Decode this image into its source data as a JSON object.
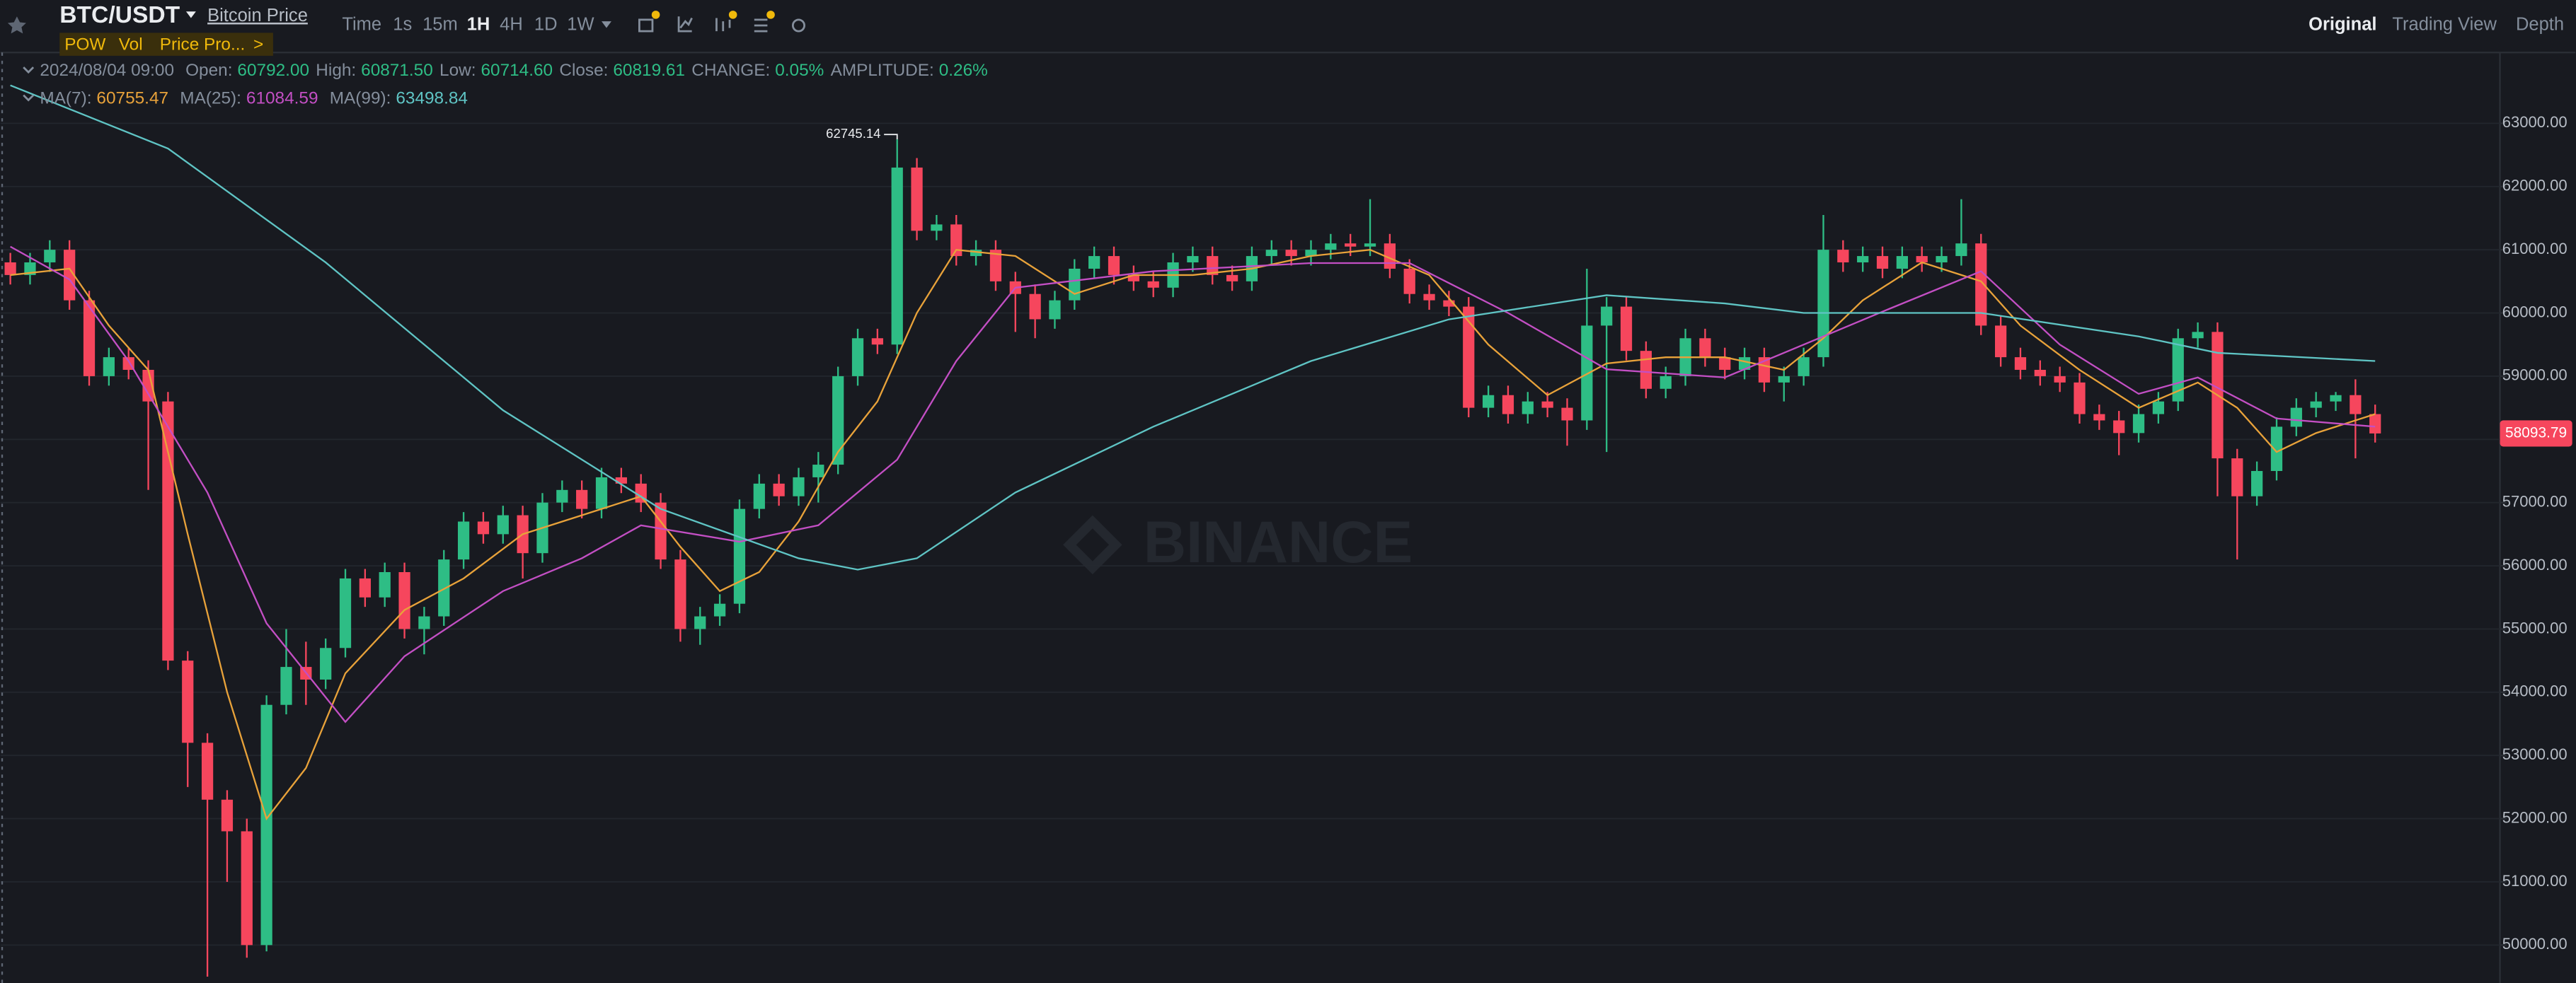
{
  "header": {
    "symbol": "BTC/USDT",
    "subtitle": "Bitcoin Price",
    "indicators": [
      "POW",
      "Vol",
      "Price Pro...",
      ">"
    ],
    "intervals": [
      "Time",
      "1s",
      "15m",
      "1H",
      "4H",
      "1D",
      "1W"
    ],
    "views": [
      "Original",
      "Trading View",
      "Depth"
    ]
  },
  "chart_data": {
    "type": "candlestick",
    "watermark": "BINANCE",
    "info": {
      "date": "2024/08/04 09:00",
      "fields": [
        {
          "label": "Open:",
          "text": "60792.00"
        },
        {
          "label": "High:",
          "text": "60871.50"
        },
        {
          "label": "Low:",
          "text": "60714.60"
        },
        {
          "label": "Close:",
          "text": "60819.61"
        },
        {
          "label": "CHANGE:",
          "text": "0.05%"
        },
        {
          "label": "AMPLITUDE:",
          "text": "0.26%"
        }
      ]
    },
    "up_color": "#2ebd85",
    "down_color": "#f6465d",
    "open": [
      60800,
      60600,
      60800,
      61000,
      60200,
      59000,
      59300,
      59100,
      58600,
      54500,
      53200,
      52300,
      51800,
      50000,
      53800,
      54400,
      54200,
      54700,
      55800,
      55500,
      55900,
      55000,
      55200,
      56100,
      56700,
      56500,
      56800,
      56200,
      57000,
      57200,
      56900,
      57400,
      57300,
      57000,
      56100,
      55000,
      55200,
      55400,
      56900,
      57300,
      57100,
      57400,
      57600,
      59000,
      59600,
      59500,
      62300,
      61300,
      61400,
      60900,
      61000,
      60500,
      60300,
      59900,
      60200,
      60700,
      60900,
      60600,
      60500,
      60400,
      60800,
      60900,
      60600,
      60500,
      60900,
      61000,
      60900,
      61000,
      61100,
      61050,
      61100,
      60700,
      60300,
      60200,
      60100,
      58500,
      58700,
      58400,
      58600,
      58500,
      58300,
      59800,
      60100,
      59400,
      58800,
      59000,
      59600,
      59300,
      59100,
      59300,
      58900,
      59000,
      59300,
      61000,
      60800,
      60900,
      60700,
      60900,
      60800,
      60900,
      61100,
      59800,
      59300,
      59100,
      59000,
      58900,
      58400,
      58300,
      58100,
      58400,
      58600,
      59600,
      59700,
      57700,
      57100,
      57500,
      58200,
      58500,
      58600,
      58700,
      58400
    ],
    "high": [
      60950,
      60950,
      61150,
      61150,
      60350,
      59450,
      59450,
      59250,
      58750,
      54650,
      53350,
      52450,
      52000,
      53950,
      55000,
      54800,
      54850,
      55950,
      55950,
      56050,
      56050,
      55350,
      56250,
      56850,
      56850,
      56950,
      56950,
      57150,
      57350,
      57350,
      57550,
      57550,
      57450,
      57150,
      56250,
      55350,
      55550,
      57050,
      57450,
      57450,
      57550,
      57800,
      59150,
      59750,
      59750,
      62745.14,
      62450,
      61550,
      61550,
      61150,
      61150,
      60650,
      60450,
      60350,
      60850,
      61050,
      61050,
      60750,
      60650,
      60950,
      61050,
      61050,
      60750,
      61050,
      61150,
      61150,
      61150,
      61250,
      61250,
      61800,
      61250,
      60850,
      60450,
      60350,
      60250,
      58850,
      58850,
      58750,
      58750,
      58650,
      60700,
      60250,
      60250,
      59550,
      59150,
      59750,
      59750,
      59450,
      59450,
      59450,
      59150,
      59450,
      61550,
      61150,
      61050,
      61050,
      61050,
      61050,
      61050,
      61800,
      61250,
      59950,
      59450,
      59250,
      59150,
      59050,
      58550,
      58450,
      58550,
      58750,
      59750,
      59850,
      59850,
      57850,
      57650,
      58350,
      58650,
      58750,
      58750,
      58950,
      58550
    ],
    "low": [
      60450,
      60450,
      60650,
      60050,
      58850,
      58850,
      58950,
      57200,
      54350,
      52500,
      49500,
      51000,
      49800,
      49900,
      53650,
      53800,
      54050,
      54550,
      55350,
      55350,
      54850,
      54600,
      55050,
      55950,
      56350,
      56350,
      55800,
      56050,
      56850,
      56750,
      56750,
      57150,
      56850,
      55950,
      54800,
      54750,
      55050,
      55250,
      56750,
      56950,
      56950,
      57000,
      57450,
      58850,
      59350,
      59350,
      61150,
      61150,
      60750,
      60750,
      60350,
      59700,
      59600,
      59750,
      60050,
      60550,
      60450,
      60350,
      60250,
      60250,
      60650,
      60450,
      60350,
      60350,
      60750,
      60750,
      60750,
      60850,
      60900,
      60900,
      60550,
      60150,
      60050,
      59950,
      58350,
      58350,
      58250,
      58250,
      58350,
      57900,
      58150,
      57800,
      59250,
      58650,
      58650,
      58850,
      59150,
      58950,
      58950,
      58750,
      58600,
      58850,
      59150,
      60650,
      60650,
      60550,
      60550,
      60650,
      60650,
      60750,
      59650,
      59150,
      58950,
      58850,
      58750,
      58250,
      58150,
      57750,
      57950,
      58250,
      58450,
      59450,
      57100,
      56100,
      56950,
      57350,
      58050,
      58350,
      58450,
      57700,
      57950
    ],
    "close": [
      60600,
      60800,
      61000,
      60200,
      59000,
      59300,
      59100,
      58600,
      54500,
      53200,
      52300,
      51800,
      50000,
      53800,
      54400,
      54200,
      54700,
      55800,
      55500,
      55900,
      55000,
      55200,
      56100,
      56700,
      56500,
      56800,
      56200,
      57000,
      57200,
      56900,
      57400,
      57300,
      57000,
      56100,
      55000,
      55200,
      55400,
      56900,
      57300,
      57100,
      57400,
      57600,
      59000,
      59600,
      59500,
      62300,
      61300,
      61400,
      60900,
      61000,
      60500,
      60300,
      59900,
      60200,
      60700,
      60900,
      60600,
      60500,
      60400,
      60800,
      60900,
      60600,
      60500,
      60900,
      61000,
      60900,
      61000,
      61100,
      61050,
      61100,
      60700,
      60300,
      60200,
      60100,
      58500,
      58700,
      58400,
      58600,
      58500,
      58300,
      59800,
      60100,
      59400,
      58800,
      59000,
      59600,
      59300,
      59100,
      59300,
      58900,
      59000,
      59300,
      61000,
      60800,
      60900,
      60700,
      60900,
      60800,
      60900,
      61100,
      59800,
      59300,
      59100,
      59000,
      58900,
      58400,
      58300,
      58100,
      58400,
      58600,
      59600,
      59700,
      57700,
      57100,
      57500,
      58200,
      58500,
      58600,
      58700,
      58400,
      58093.79
    ],
    "ma": [
      {
        "name": "MA(7):",
        "current": 60755.47,
        "color": "#e8a23a",
        "x": [
          0,
          3,
          5,
          7,
          9,
          11,
          13,
          15,
          17,
          20,
          23,
          26,
          29,
          32,
          34,
          36,
          38,
          40,
          42,
          44,
          46,
          48,
          51,
          54,
          57,
          60,
          63,
          66,
          69,
          72,
          75,
          78,
          81,
          84,
          87,
          90,
          92,
          94,
          97,
          100,
          102,
          105,
          108,
          111,
          113,
          115,
          117,
          120
        ],
        "values": [
          60600,
          60700,
          59800,
          59100,
          56500,
          54000,
          52000,
          52800,
          54300,
          55300,
          55800,
          56500,
          56800,
          57100,
          56300,
          55600,
          55900,
          56700,
          57800,
          58600,
          60000,
          61000,
          60900,
          60300,
          60600,
          60600,
          60700,
          60900,
          61000,
          60600,
          59500,
          58700,
          59200,
          59300,
          59300,
          59100,
          59600,
          60200,
          60800,
          60500,
          59800,
          59100,
          58500,
          58900,
          58500,
          57800,
          58100,
          58400
        ]
      },
      {
        "name": "MA(25):",
        "current": 61084.59,
        "color": "#c34fc4",
        "x": [
          0,
          3,
          6,
          10,
          13,
          17,
          20,
          25,
          29,
          32,
          37,
          41,
          45,
          48,
          51,
          58,
          66,
          71,
          76,
          81,
          87,
          91,
          95,
          100,
          104,
          108,
          111,
          115,
          120
        ],
        "values": [
          61050,
          60530,
          59240,
          57160,
          55090,
          53530,
          54570,
          55600,
          56120,
          56640,
          56380,
          56640,
          57680,
          59240,
          60400,
          60660,
          60790,
          60790,
          60000,
          59110,
          58980,
          59500,
          60020,
          60660,
          59500,
          58720,
          58980,
          58330,
          58200
        ]
      },
      {
        "name": "MA(99):",
        "current": 63498.84,
        "color": "#5fc4c4",
        "x": [
          0,
          8,
          16,
          25,
          33,
          40,
          43,
          46,
          51,
          58,
          66,
          73,
          81,
          87,
          91,
          100,
          108,
          112,
          120
        ],
        "values": [
          63600,
          62600,
          60800,
          58460,
          56900,
          56120,
          55940,
          56120,
          57160,
          58200,
          59240,
          59900,
          60280,
          60150,
          60000,
          60000,
          59630,
          59370,
          59240
        ]
      }
    ],
    "ylim": [
      49400,
      64120
    ],
    "yticks": [
      {
        "value": 50000,
        "label": "50000.00"
      },
      {
        "value": 51000,
        "label": "51000.00"
      },
      {
        "value": 52000,
        "label": "52000.00"
      },
      {
        "value": 53000,
        "label": "53000.00"
      },
      {
        "value": 54000,
        "label": "54000.00"
      },
      {
        "value": 55000,
        "label": "55000.00"
      },
      {
        "value": 56000,
        "label": "56000.00"
      },
      {
        "value": 57000,
        "label": "57000.00"
      },
      {
        "value": 58000,
        "label": "58000.00"
      },
      {
        "value": 59000,
        "label": "59000.00"
      },
      {
        "value": 60000,
        "label": "60000.00"
      },
      {
        "value": 61000,
        "label": "61000.00"
      },
      {
        "value": 62000,
        "label": "62000.00"
      },
      {
        "value": 63000,
        "label": "63000.00"
      }
    ],
    "grid": true
  }
}
